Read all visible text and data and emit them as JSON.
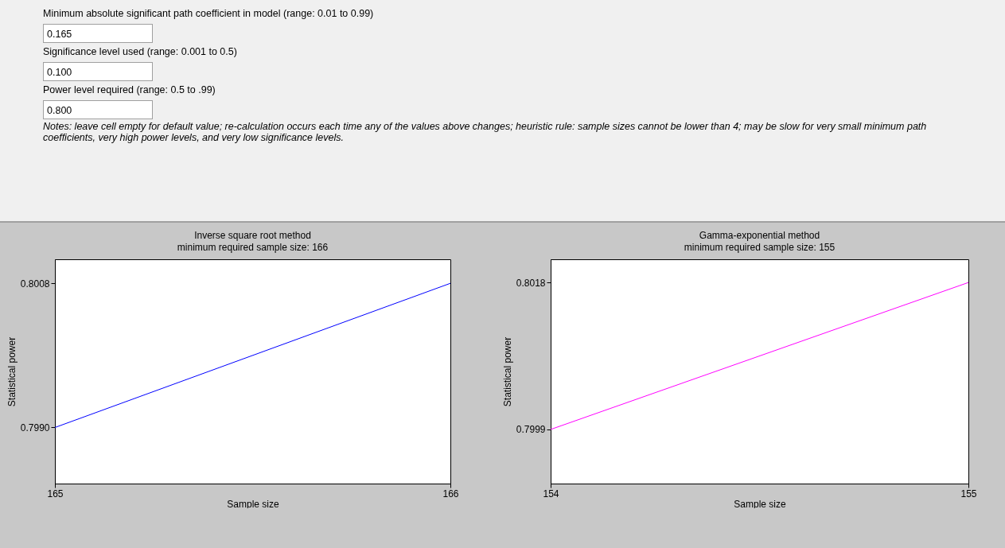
{
  "chart_data": [
    {
      "type": "other",
      "annotations": [
        "Minimum absolute significant path coefficient in model (range: 0.01 to 0.99)",
        "0.165",
        "Significance level used (range: 0.001 to 0.5)",
        "0.100",
        "Power level required (range: 0.5 to .99)",
        "0.800",
        "Notes: leave cell empty for default value; re-calculation occurs each time any of the values above changes; heuristic rule: sample sizes cannot be lower than 4; may be slow for very small minimum path coefficients, very high power levels, and very low significance levels."
      ]
    },
    {
      "type": "line",
      "title": "Inverse square root method",
      "subtitle": "minimum required sample size: 166",
      "xlabel": "Sample size",
      "ylabel": "Statistical power",
      "x": [
        165,
        166
      ],
      "xlim": [
        165,
        166
      ],
      "xticks": [
        165,
        166
      ],
      "ylim": [
        0.7983,
        0.8011
      ],
      "yticks": [
        {
          "value": 0.799,
          "label": "0.7990"
        },
        0.8008
      ],
      "series": [
        {
          "color": "#0000ff",
          "values": [
            0.799,
            0.8008
          ]
        }
      ]
    },
    {
      "type": "line",
      "title": "Gamma-exponential method",
      "subtitle": "minimum required sample size: 155",
      "xlabel": "Sample size",
      "ylabel": "Statistical power",
      "x": [
        154,
        155
      ],
      "xlim": [
        154,
        155
      ],
      "xticks": [
        154,
        155
      ],
      "ylim": [
        0.7992,
        0.8021
      ],
      "yticks": [
        0.7999,
        0.8018
      ],
      "series": [
        {
          "color": "#ff00ff",
          "values": [
            0.7999,
            0.8018
          ]
        }
      ]
    }
  ]
}
